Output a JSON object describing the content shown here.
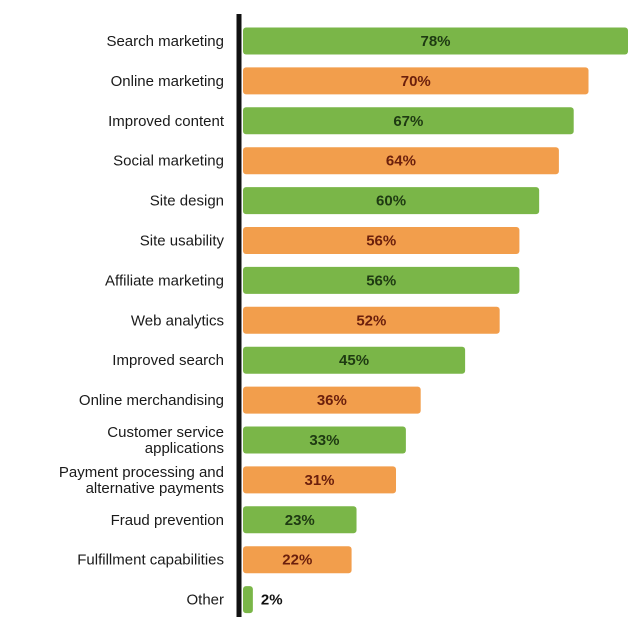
{
  "chart_data": {
    "type": "bar",
    "orientation": "horizontal",
    "title": "",
    "xlabel": "",
    "ylabel": "",
    "xlim": [
      0,
      78
    ],
    "grid": false,
    "legend": "none",
    "value_suffix": "%",
    "categories": [
      [
        "Search marketing"
      ],
      [
        "Online marketing"
      ],
      [
        "Improved content"
      ],
      [
        "Social marketing"
      ],
      [
        "Site design"
      ],
      [
        "Site usability"
      ],
      [
        "Affiliate marketing"
      ],
      [
        "Web analytics"
      ],
      [
        "Improved search"
      ],
      [
        "Online merchandising"
      ],
      [
        "Customer service",
        "applications"
      ],
      [
        "Payment processing and",
        "alternative payments"
      ],
      [
        "Fraud prevention"
      ],
      [
        "Fulfillment capabilities"
      ],
      [
        "Other"
      ]
    ],
    "values": [
      78,
      70,
      67,
      64,
      60,
      56,
      56,
      52,
      45,
      36,
      33,
      31,
      23,
      22,
      2
    ],
    "colors": {
      "green": "#7ab648",
      "orange": "#f29e4c",
      "axis": "#111111",
      "value_text_on_green": "#1e3a12",
      "value_text_on_orange": "#6b1f0c",
      "value_text_outside": "#111111"
    },
    "bar_color_pattern": [
      "green",
      "orange"
    ]
  }
}
